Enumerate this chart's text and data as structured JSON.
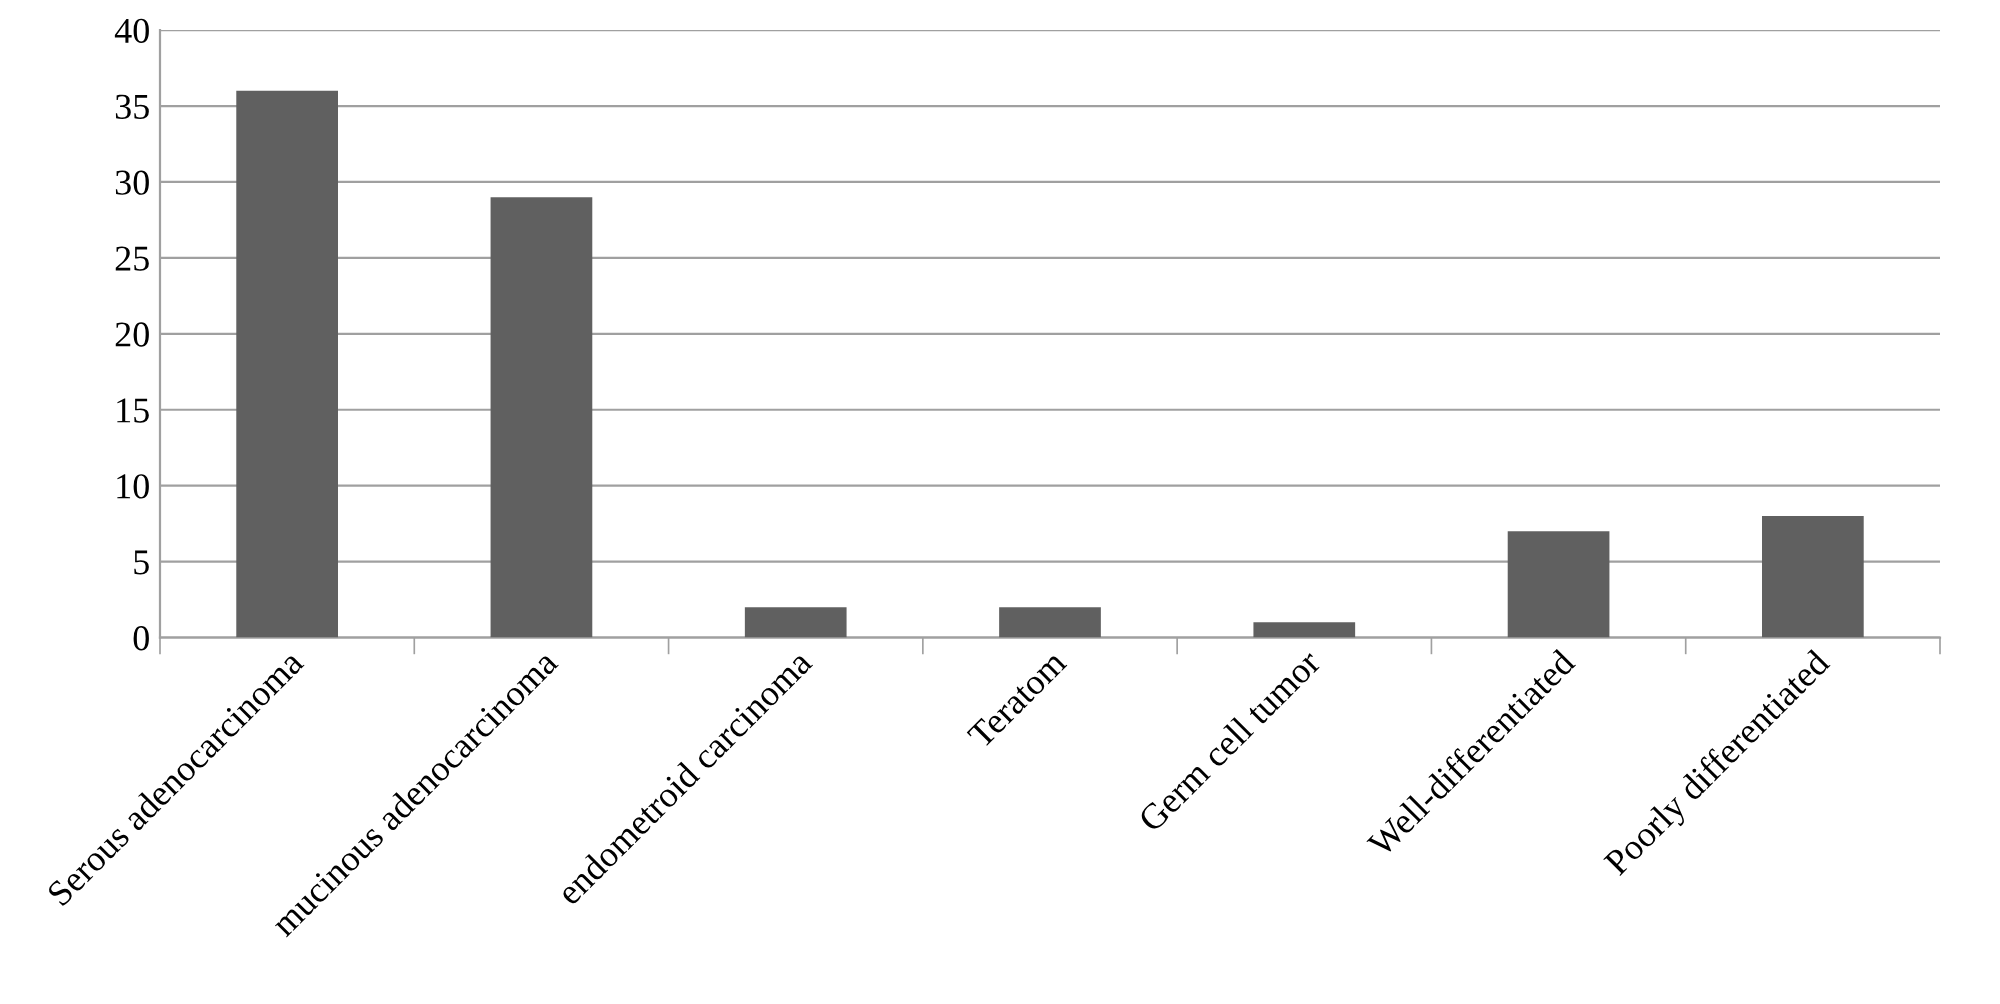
{
  "chart_data": {
    "type": "bar",
    "categories": [
      "Serous adenocarcinoma",
      "mucinous adenocarcinoma",
      "endometroid carcinoma",
      "Teratom",
      "Germ cell tumor",
      "Well-differentiated",
      "Poorly differentiated"
    ],
    "values": [
      36,
      29,
      2,
      2,
      1,
      7,
      8
    ],
    "color": "#606060",
    "ylim": [
      0,
      40
    ],
    "yticks": [
      0,
      5,
      10,
      15,
      20,
      25,
      30,
      35,
      40
    ],
    "grid": "y",
    "legend": false
  }
}
